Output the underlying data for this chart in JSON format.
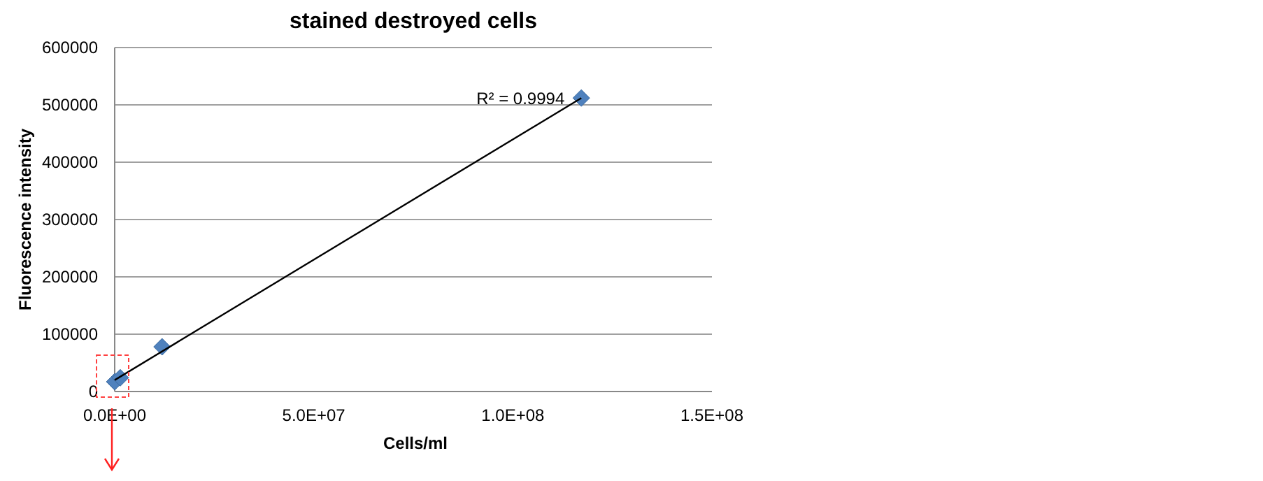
{
  "chart_data": {
    "type": "scatter",
    "title": "stained destroyed cells",
    "xlabel": "Cells/ml",
    "ylabel": "Fluorescence intensity",
    "xlim": [
      0,
      150000000
    ],
    "xticks": [
      {
        "value": 0,
        "label": "0.0E+00"
      },
      {
        "value": 50000000,
        "label": "5.0E+07"
      },
      {
        "value": 100000000,
        "label": "1.0E+08"
      },
      {
        "value": 150000000,
        "label": "1.5E+08"
      }
    ],
    "ylim": [
      0,
      600000
    ],
    "yticks": [
      0,
      100000,
      200000,
      300000,
      400000,
      500000,
      600000
    ],
    "grid": "y",
    "series": [
      {
        "color": "#4f81bd",
        "marker": "diamond",
        "x": [
          0,
          1400000,
          11900000,
          117200000
        ],
        "values": [
          17000,
          24000,
          78000,
          512000
        ]
      },
      {
        "type": "line",
        "color": "#000000",
        "x": [
          0,
          117200000
        ],
        "values": [
          20000,
          512000
        ]
      }
    ],
    "annotations": [
      {
        "text": "R² = 0.9994",
        "x": 117200000,
        "y": 512000
      }
    ]
  }
}
